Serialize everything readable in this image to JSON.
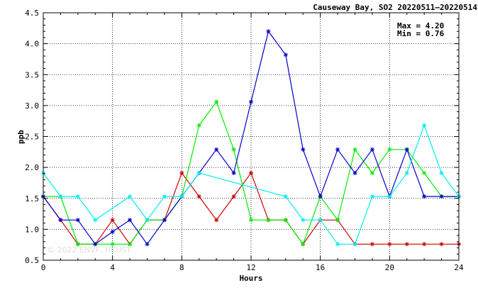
{
  "chart_data": {
    "type": "line",
    "title": "Causeway Bay, SO2 20220511–20220514",
    "annotations": {
      "max": "Max = 4.20",
      "min": "Min = 0.76"
    },
    "watermark": "© 2022 ENVF, HKUST",
    "xlabel": "Hours",
    "ylabel": "ppb",
    "xlim": [
      0,
      24
    ],
    "ylim": [
      0.5,
      4.5
    ],
    "x_ticks": [
      0,
      4,
      8,
      12,
      16,
      20,
      24
    ],
    "y_ticks": [
      "0.5",
      "1.0",
      "1.5",
      "2.0",
      "2.5",
      "3.0",
      "3.5",
      "4.0",
      "4.5"
    ],
    "grid": true,
    "series": [
      {
        "color": "#cc0000",
        "points": [
          [
            0,
            1.53
          ],
          [
            1,
            1.15
          ],
          [
            2,
            0.76
          ],
          [
            3,
            0.76
          ],
          [
            4,
            1.15
          ],
          [
            5,
            0.76
          ],
          [
            6,
            1.15
          ],
          [
            7,
            1.15
          ],
          [
            8,
            1.91
          ],
          [
            9,
            1.53
          ],
          [
            10,
            1.15
          ],
          [
            11,
            1.53
          ],
          [
            12,
            1.91
          ],
          [
            13,
            1.15
          ],
          [
            14,
            1.15
          ],
          [
            15,
            0.76
          ],
          [
            16,
            1.15
          ],
          [
            17,
            1.15
          ],
          [
            18,
            0.76
          ],
          [
            19,
            0.76
          ],
          [
            20,
            0.76
          ],
          [
            21,
            0.76
          ],
          [
            22,
            0.76
          ],
          [
            23,
            0.76
          ],
          [
            24,
            0.76
          ]
        ]
      },
      {
        "color": "#00ee00",
        "points": [
          [
            0,
            1.53
          ],
          [
            1,
            1.53
          ],
          [
            2,
            0.76
          ],
          [
            3,
            0.76
          ],
          [
            4,
            0.76
          ],
          [
            5,
            0.76
          ],
          [
            6,
            1.15
          ],
          [
            7,
            1.15
          ],
          [
            8,
            1.53
          ],
          [
            9,
            2.68
          ],
          [
            10,
            3.06
          ],
          [
            11,
            2.29
          ],
          [
            12,
            1.15
          ],
          [
            13,
            1.15
          ],
          [
            14,
            1.15
          ],
          [
            15,
            0.76
          ],
          [
            16,
            1.53
          ],
          [
            17,
            1.15
          ],
          [
            18,
            2.29
          ],
          [
            19,
            1.91
          ],
          [
            20,
            2.29
          ],
          [
            21,
            2.29
          ],
          [
            22,
            1.91
          ],
          [
            23,
            1.53
          ],
          [
            24,
            1.53
          ]
        ]
      },
      {
        "color": "#0000cc",
        "points": [
          [
            0,
            1.53
          ],
          [
            1,
            1.15
          ],
          [
            2,
            1.15
          ],
          [
            3,
            0.76
          ],
          [
            4,
            0.96
          ],
          [
            5,
            1.15
          ],
          [
            6,
            0.76
          ],
          [
            7,
            1.15
          ],
          [
            8,
            1.53
          ],
          [
            9,
            1.91
          ],
          [
            10,
            2.29
          ],
          [
            11,
            1.91
          ],
          [
            12,
            3.06
          ],
          [
            13,
            4.2
          ],
          [
            14,
            3.82
          ],
          [
            15,
            2.29
          ],
          [
            16,
            1.53
          ],
          [
            17,
            2.29
          ],
          [
            18,
            1.91
          ],
          [
            19,
            2.29
          ],
          [
            20,
            1.53
          ],
          [
            21,
            2.29
          ],
          [
            22,
            1.53
          ],
          [
            23,
            1.53
          ],
          [
            24,
            1.53
          ]
        ]
      },
      {
        "color": "#00eeee",
        "points": [
          [
            0,
            1.91
          ],
          [
            1,
            1.53
          ],
          [
            2,
            1.53
          ],
          [
            3,
            1.15
          ],
          [
            5,
            1.53
          ],
          [
            6,
            1.15
          ],
          [
            7,
            1.53
          ],
          [
            8,
            1.53
          ],
          [
            9,
            1.91
          ],
          [
            14,
            1.53
          ],
          [
            15,
            1.15
          ],
          [
            16,
            1.15
          ],
          [
            17,
            0.76
          ],
          [
            18,
            0.76
          ],
          [
            19,
            1.53
          ],
          [
            20,
            1.53
          ],
          [
            21,
            1.91
          ],
          [
            22,
            2.68
          ],
          [
            23,
            1.91
          ],
          [
            24,
            1.53
          ]
        ]
      }
    ]
  }
}
